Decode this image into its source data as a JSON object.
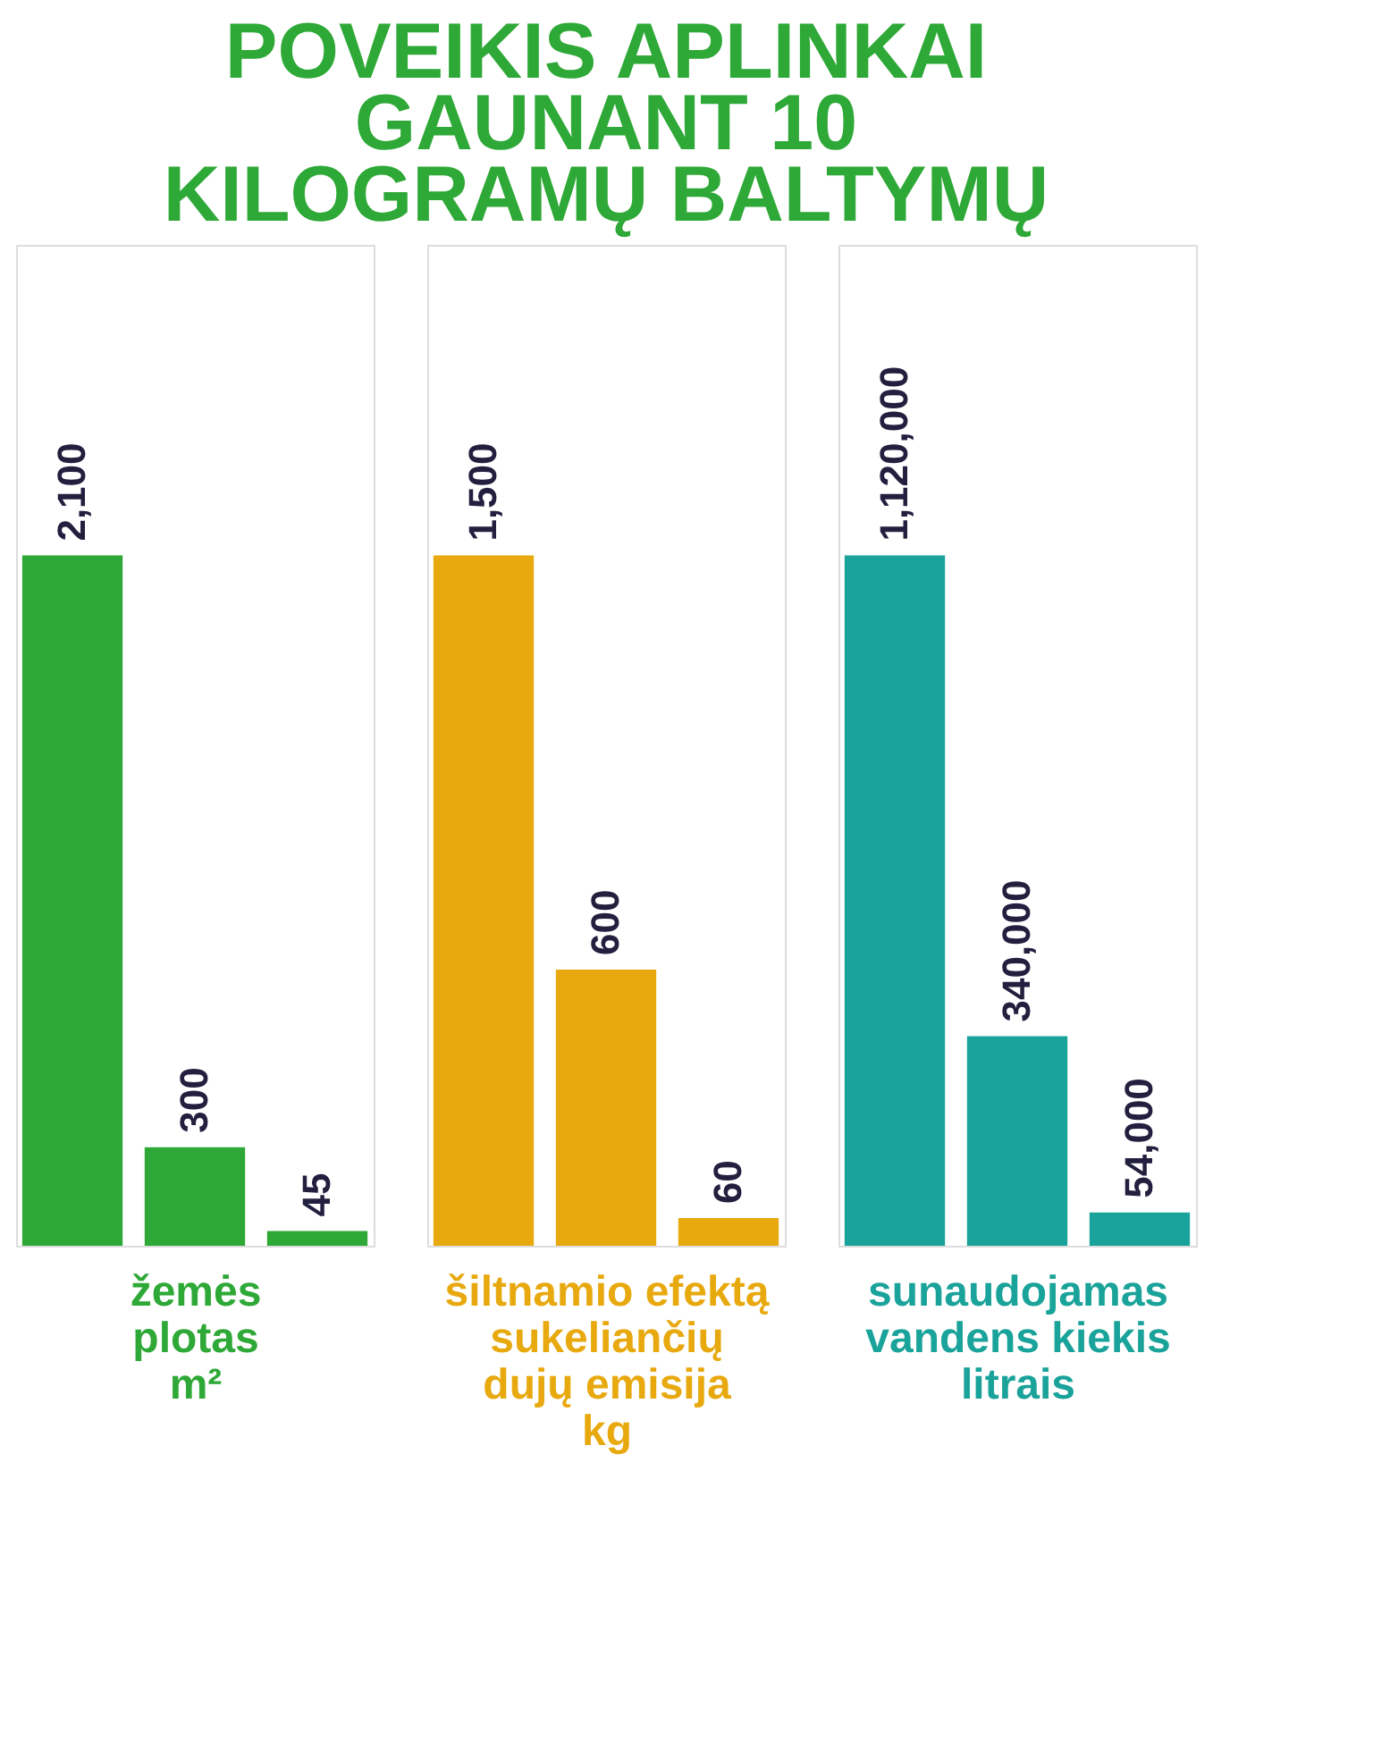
{
  "chart_data": [
    {
      "type": "bar",
      "title": "POVEIKIS APLINKAI\nGAUNANT 10\nKILOGRAMŲ BALTYMŲ",
      "xlabel": "žemės\nplotas\nm²",
      "categories": [
        null,
        null,
        null
      ],
      "values": [
        2100,
        300,
        45
      ],
      "value_labels": [
        "2,100",
        "300",
        "45"
      ],
      "colors": [
        "#2ea836",
        "#2ea836",
        "#2ea836"
      ],
      "tick_labels": false,
      "grid": false
    },
    {
      "type": "bar",
      "xlabel": "šiltnamio efektą\nsukeliančių\ndujų emisija\nkg",
      "categories": [
        null,
        null,
        null
      ],
      "values": [
        1500,
        600,
        60
      ],
      "value_labels": [
        "1,500",
        "600",
        "60"
      ],
      "colors": [
        "#e8a90f",
        "#e8a90f",
        "#e8a90f"
      ],
      "tick_labels": false,
      "grid": false
    },
    {
      "type": "bar",
      "xlabel": "sunaudojamas\nvandens kiekis\nlitrais",
      "categories": [
        null,
        null,
        null
      ],
      "values": [
        1120000,
        340000,
        54000
      ],
      "value_labels": [
        "1,120,000",
        "340,000",
        "54,000"
      ],
      "colors": [
        "#1aa39a",
        "#1aa39a",
        "#1aa39a"
      ],
      "tick_labels": false,
      "grid": false
    }
  ]
}
